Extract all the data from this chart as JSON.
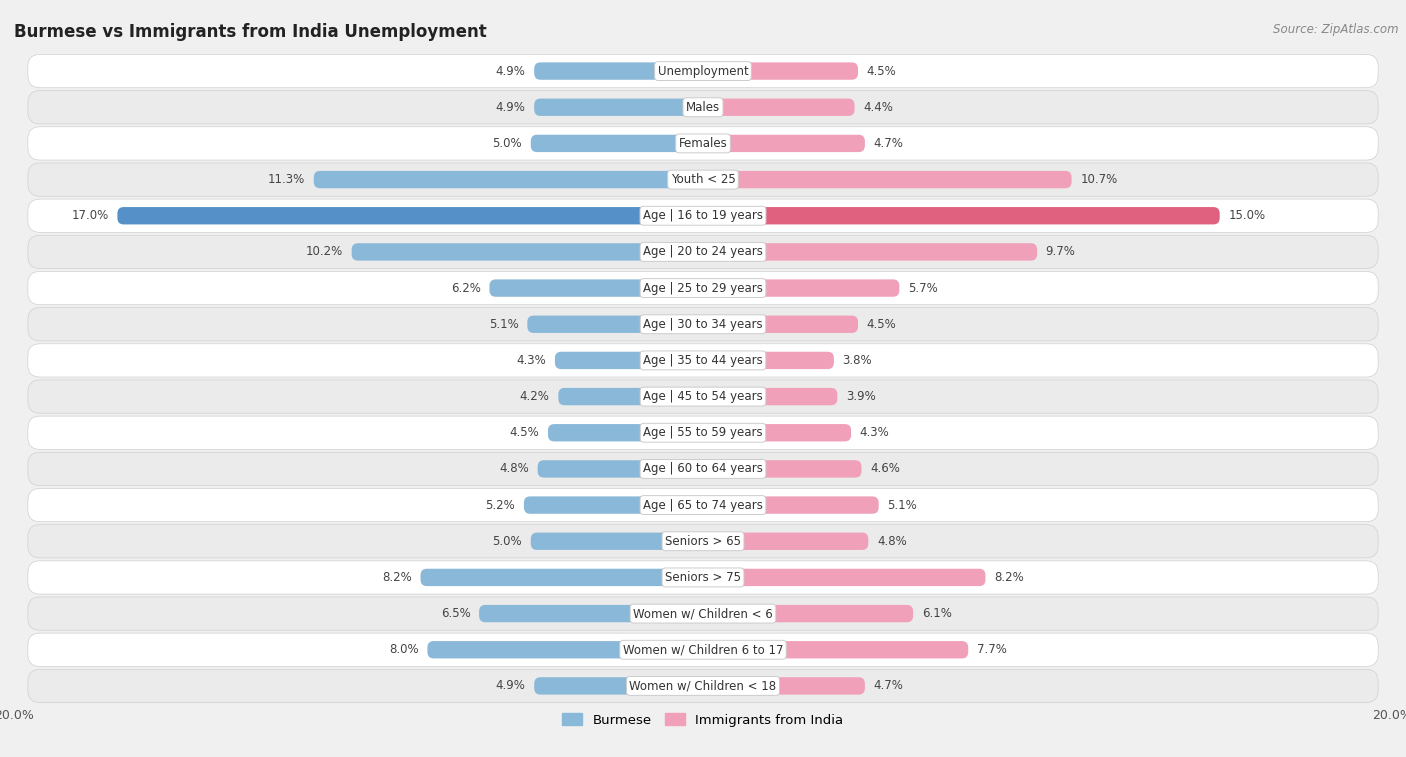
{
  "title": "Burmese vs Immigrants from India Unemployment",
  "source": "Source: ZipAtlas.com",
  "categories": [
    "Unemployment",
    "Males",
    "Females",
    "Youth < 25",
    "Age | 16 to 19 years",
    "Age | 20 to 24 years",
    "Age | 25 to 29 years",
    "Age | 30 to 34 years",
    "Age | 35 to 44 years",
    "Age | 45 to 54 years",
    "Age | 55 to 59 years",
    "Age | 60 to 64 years",
    "Age | 65 to 74 years",
    "Seniors > 65",
    "Seniors > 75",
    "Women w/ Children < 6",
    "Women w/ Children 6 to 17",
    "Women w/ Children < 18"
  ],
  "burmese": [
    4.9,
    4.9,
    5.0,
    11.3,
    17.0,
    10.2,
    6.2,
    5.1,
    4.3,
    4.2,
    4.5,
    4.8,
    5.2,
    5.0,
    8.2,
    6.5,
    8.0,
    4.9
  ],
  "india": [
    4.5,
    4.4,
    4.7,
    10.7,
    15.0,
    9.7,
    5.7,
    4.5,
    3.8,
    3.9,
    4.3,
    4.6,
    5.1,
    4.8,
    8.2,
    6.1,
    7.7,
    4.7
  ],
  "burmese_color": "#8ab8d8",
  "india_color": "#f0a0b8",
  "highlight_burmese_color": "#5590c8",
  "highlight_india_color": "#e06080",
  "row_bg_white": "#ffffff",
  "row_bg_light": "#ebebeb",
  "row_border": "#d0d0d0",
  "bg_color": "#f0f0f0",
  "xlim": 20.0,
  "legend_labels": [
    "Burmese",
    "Immigrants from India"
  ],
  "label_fontsize": 8.5,
  "value_fontsize": 8.5,
  "title_fontsize": 12,
  "source_fontsize": 8.5
}
